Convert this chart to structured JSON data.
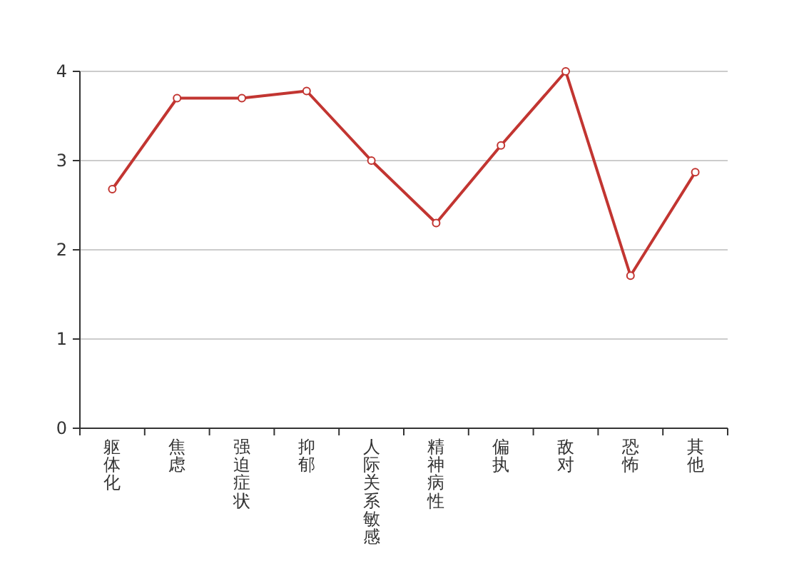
{
  "chart_data": {
    "type": "line",
    "categories": [
      "躯体化",
      "焦虑",
      "强迫症状",
      "抑郁",
      "人际关系敏感",
      "精神病性",
      "偏执",
      "敌对",
      "恐怖",
      "其他"
    ],
    "series": [
      {
        "color": "#c23531",
        "values": [
          2.68,
          3.7,
          3.7,
          3.78,
          3.0,
          2.3,
          3.17,
          4.0,
          1.71,
          2.87
        ]
      }
    ],
    "ylim": [
      0,
      4
    ],
    "yticks": [
      0,
      1,
      2,
      3,
      4
    ],
    "grid": "y",
    "marker": "circle",
    "line_style": "solid"
  }
}
